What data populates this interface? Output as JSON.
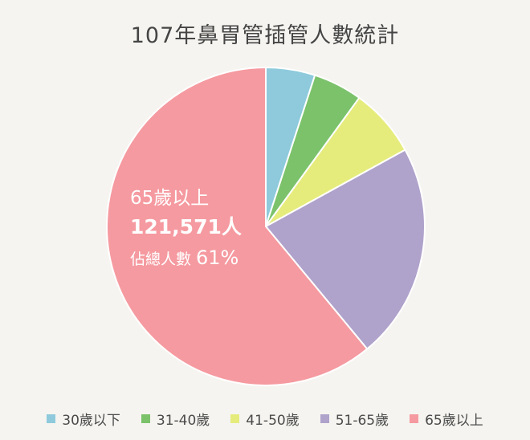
{
  "chart_data": {
    "type": "pie",
    "title": "107年鼻胃管插管人數統計",
    "categories": [
      "30歲以下",
      "31-40歲",
      "41-50歲",
      "51-65歲",
      "65歲以上"
    ],
    "values": [
      5,
      5,
      7,
      22,
      61
    ],
    "unit": "%",
    "colors": [
      "#8ecadc",
      "#7bc26b",
      "#e6ec7c",
      "#afa2cb",
      "#f59aa0"
    ],
    "legend_position": "bottom",
    "annotation": {
      "label": "65歲以上",
      "count": "121,571人",
      "share_prefix": "佔總人數",
      "share_value": "61%"
    }
  }
}
